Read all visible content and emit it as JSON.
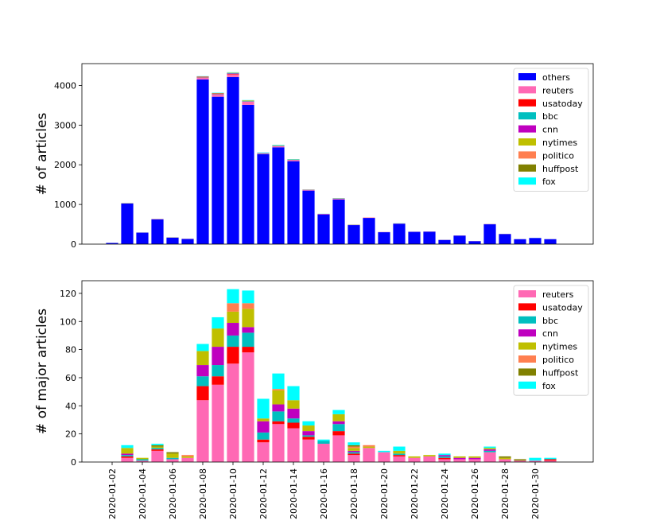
{
  "chart_data": [
    {
      "type": "bar",
      "stacked": true,
      "ylabel": "# of articles",
      "ylim": [
        0,
        4550
      ],
      "yticks": [
        0,
        1000,
        2000,
        3000,
        4000
      ],
      "legend_position": "top-right",
      "categories": [
        "2020-01-02",
        "2020-01-03",
        "2020-01-04",
        "2020-01-05",
        "2020-01-06",
        "2020-01-07",
        "2020-01-08",
        "2020-01-09",
        "2020-01-10",
        "2020-01-11",
        "2020-01-12",
        "2020-01-13",
        "2020-01-14",
        "2020-01-15",
        "2020-01-16",
        "2020-01-17",
        "2020-01-18",
        "2020-01-19",
        "2020-01-20",
        "2020-01-21",
        "2020-01-22",
        "2020-01-23",
        "2020-01-24",
        "2020-01-25",
        "2020-01-26",
        "2020-01-27",
        "2020-01-28",
        "2020-01-29",
        "2020-01-30",
        "2020-01-31"
      ],
      "series": [
        {
          "name": "others",
          "color": "#0000ff",
          "values": [
            30,
            1025,
            290,
            625,
            165,
            130,
            4150,
            3715,
            4210,
            3510,
            2265,
            2440,
            2090,
            1350,
            750,
            1125,
            480,
            660,
            300,
            515,
            310,
            315,
            105,
            215,
            75,
            500,
            255,
            125,
            155,
            125
          ]
        },
        {
          "name": "reuters",
          "color": "#ff69b4",
          "values": [
            0,
            3,
            1,
            8,
            2,
            3,
            44,
            55,
            70,
            78,
            14,
            27,
            24,
            16,
            13,
            19,
            5,
            10,
            7,
            4,
            3,
            4,
            2,
            2,
            2,
            7,
            2,
            1,
            1,
            1
          ]
        },
        {
          "name": "usatoday",
          "color": "#ff0000",
          "values": [
            0,
            1,
            0,
            1,
            0,
            0,
            10,
            6,
            12,
            4,
            2,
            2,
            4,
            2,
            0,
            3,
            1,
            0,
            0,
            1,
            0,
            0,
            1,
            0,
            0,
            0,
            0,
            0,
            0,
            1
          ]
        },
        {
          "name": "bbc",
          "color": "#00bfbf",
          "values": [
            0,
            1,
            1,
            1,
            1,
            0,
            7,
            8,
            8,
            10,
            5,
            7,
            3,
            1,
            2,
            5,
            1,
            0,
            0,
            1,
            0,
            0,
            1,
            0,
            0,
            1,
            0,
            0,
            0,
            0
          ]
        },
        {
          "name": "cnn",
          "color": "#bf00bf",
          "values": [
            0,
            1,
            0,
            0,
            0,
            0,
            8,
            13,
            9,
            4,
            8,
            5,
            7,
            3,
            0,
            2,
            1,
            0,
            0,
            0,
            0,
            0,
            1,
            1,
            1,
            1,
            0,
            0,
            0,
            0
          ]
        },
        {
          "name": "nytimes",
          "color": "#bfbf00",
          "values": [
            0,
            4,
            1,
            1,
            3,
            1,
            10,
            13,
            8,
            13,
            2,
            10,
            6,
            4,
            0,
            5,
            2,
            1,
            0,
            2,
            1,
            1,
            0,
            1,
            1,
            1,
            1,
            0,
            0,
            0
          ]
        },
        {
          "name": "politico",
          "color": "#ff7f50",
          "values": [
            0,
            0,
            0,
            0,
            0,
            1,
            0,
            0,
            6,
            4,
            0,
            1,
            0,
            0,
            0,
            0,
            1,
            1,
            0,
            0,
            0,
            0,
            0,
            0,
            0,
            0,
            0,
            0,
            0,
            0
          ]
        },
        {
          "name": "huffpost",
          "color": "#808000",
          "values": [
            0,
            0,
            0,
            1,
            1,
            0,
            0,
            0,
            0,
            0,
            0,
            0,
            0,
            0,
            0,
            0,
            1,
            0,
            0,
            0,
            0,
            0,
            0,
            0,
            0,
            0,
            1,
            1,
            0,
            0
          ]
        },
        {
          "name": "fox",
          "color": "#00ffff",
          "values": [
            0,
            2,
            0,
            1,
            0,
            0,
            5,
            8,
            10,
            9,
            14,
            11,
            10,
            3,
            1,
            3,
            2,
            0,
            1,
            3,
            0,
            0,
            1,
            0,
            0,
            1,
            0,
            0,
            2,
            1
          ]
        }
      ]
    },
    {
      "type": "bar",
      "stacked": true,
      "ylabel": "# of major articles",
      "ylim": [
        0,
        129
      ],
      "yticks": [
        0,
        20,
        40,
        60,
        80,
        100,
        120
      ],
      "legend_position": "top-right",
      "xtick_labels": [
        "2020-01-02",
        "2020-01-04",
        "2020-01-06",
        "2020-01-08",
        "2020-01-10",
        "2020-01-12",
        "2020-01-14",
        "2020-01-16",
        "2020-01-18",
        "2020-01-20",
        "2020-01-22",
        "2020-01-24",
        "2020-01-26",
        "2020-01-28",
        "2020-01-30"
      ],
      "categories": [
        "2020-01-02",
        "2020-01-03",
        "2020-01-04",
        "2020-01-05",
        "2020-01-06",
        "2020-01-07",
        "2020-01-08",
        "2020-01-09",
        "2020-01-10",
        "2020-01-11",
        "2020-01-12",
        "2020-01-13",
        "2020-01-14",
        "2020-01-15",
        "2020-01-16",
        "2020-01-17",
        "2020-01-18",
        "2020-01-19",
        "2020-01-20",
        "2020-01-21",
        "2020-01-22",
        "2020-01-23",
        "2020-01-24",
        "2020-01-25",
        "2020-01-26",
        "2020-01-27",
        "2020-01-28",
        "2020-01-29",
        "2020-01-30",
        "2020-01-31"
      ],
      "series": [
        {
          "name": "reuters",
          "color": "#ff69b4",
          "values": [
            0,
            3,
            1,
            8,
            2,
            3,
            44,
            55,
            70,
            78,
            14,
            27,
            24,
            16,
            13,
            19,
            5,
            10,
            7,
            4,
            3,
            4,
            2,
            2,
            2,
            7,
            2,
            1,
            1,
            1
          ]
        },
        {
          "name": "usatoday",
          "color": "#ff0000",
          "values": [
            0,
            1,
            0,
            1,
            0,
            0,
            10,
            6,
            12,
            4,
            2,
            2,
            4,
            2,
            0,
            3,
            1,
            0,
            0,
            1,
            0,
            0,
            1,
            0,
            0,
            0,
            0,
            0,
            0,
            1
          ]
        },
        {
          "name": "bbc",
          "color": "#00bfbf",
          "values": [
            0,
            1,
            1,
            1,
            1,
            0,
            7,
            8,
            8,
            10,
            5,
            7,
            3,
            1,
            2,
            5,
            1,
            0,
            0,
            1,
            0,
            0,
            1,
            0,
            0,
            1,
            0,
            0,
            0,
            0
          ]
        },
        {
          "name": "cnn",
          "color": "#bf00bf",
          "values": [
            0,
            1,
            0,
            0,
            0,
            0,
            8,
            13,
            9,
            4,
            8,
            5,
            7,
            3,
            0,
            2,
            1,
            0,
            0,
            0,
            0,
            0,
            1,
            1,
            1,
            1,
            0,
            0,
            0,
            0
          ]
        },
        {
          "name": "nytimes",
          "color": "#bfbf00",
          "values": [
            0,
            4,
            1,
            1,
            3,
            1,
            10,
            13,
            8,
            13,
            2,
            10,
            6,
            4,
            0,
            5,
            2,
            1,
            0,
            2,
            1,
            1,
            0,
            1,
            1,
            1,
            1,
            0,
            0,
            0
          ]
        },
        {
          "name": "politico",
          "color": "#ff7f50",
          "values": [
            0,
            0,
            0,
            0,
            0,
            1,
            0,
            0,
            6,
            4,
            0,
            1,
            0,
            0,
            0,
            0,
            1,
            1,
            0,
            0,
            0,
            0,
            0,
            0,
            0,
            0,
            0,
            0,
            0,
            0
          ]
        },
        {
          "name": "huffpost",
          "color": "#808000",
          "values": [
            0,
            0,
            0,
            1,
            1,
            0,
            0,
            0,
            0,
            0,
            0,
            0,
            0,
            0,
            0,
            0,
            1,
            0,
            0,
            0,
            0,
            0,
            0,
            0,
            0,
            0,
            1,
            1,
            0,
            0
          ]
        },
        {
          "name": "fox",
          "color": "#00ffff",
          "values": [
            0,
            2,
            0,
            1,
            0,
            0,
            5,
            8,
            10,
            9,
            14,
            11,
            10,
            3,
            1,
            3,
            2,
            0,
            1,
            3,
            0,
            0,
            1,
            0,
            0,
            1,
            0,
            0,
            2,
            1
          ]
        }
      ]
    }
  ]
}
